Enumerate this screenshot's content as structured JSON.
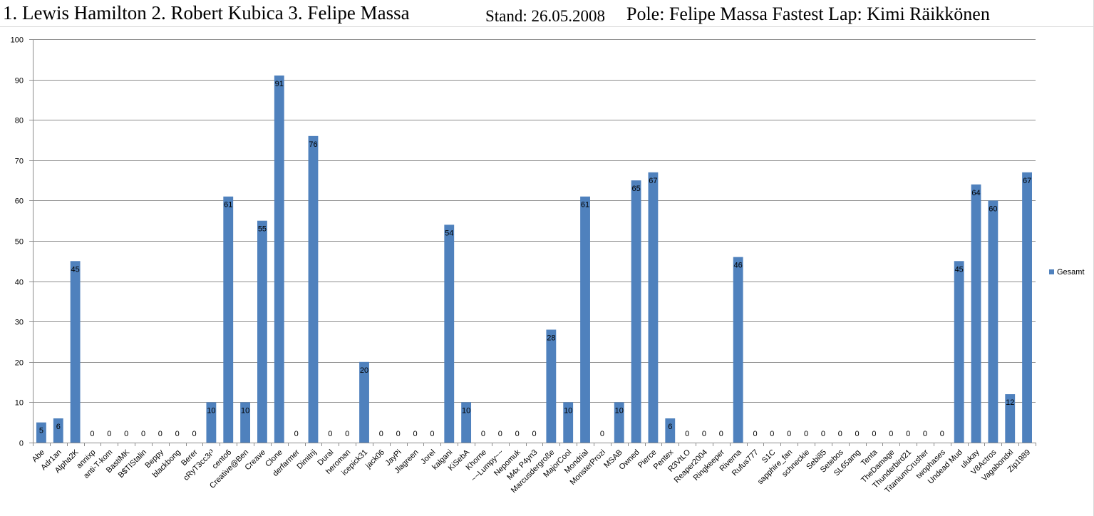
{
  "header": {
    "results": "1. Lewis Hamilton 2. Robert Kubica 3. Felipe Massa",
    "stand": "Stand: 26.05.2008",
    "pole_fastest": "Pole: Felipe Massa Fastest Lap: Kimi Räikkönen"
  },
  "colors": {
    "bar": "#4f81bd",
    "grid": "#8c8c8c",
    "axis": "#8c8c8c",
    "frame": "#d9d9d9"
  },
  "chart_data": {
    "type": "bar",
    "title": "",
    "xlabel": "",
    "ylabel": "",
    "ylim": [
      0,
      100
    ],
    "yticks": [
      0,
      10,
      20,
      30,
      40,
      50,
      60,
      70,
      80,
      90,
      100
    ],
    "grid": true,
    "legend_position": "right",
    "categories": [
      "Abe",
      "Adr1an",
      "Alpha2K",
      "annixp",
      "anti-T-kom",
      "BastiMK",
      "B$TIStalin",
      "Beppy",
      "blackbong",
      "Berer",
      "cRyT3cc3r³",
      "cento6",
      "Creative@Ben",
      "Creave",
      "Clone",
      "derfarmer",
      "Dimitrij",
      "Dural",
      "heroman",
      "icepick31",
      "jack06",
      "JayPi",
      "Jlagreen",
      "Jorel",
      "kalgani",
      "KiSebA",
      "Khorne",
      "~~Lumpy~~",
      "Nepomuk",
      "M4x P4yn3",
      "Marcusdergroße",
      "MajorCool",
      "Mondrial",
      "MonsterProzi",
      "MSAB",
      "Owned",
      "Pierce",
      "Pentex",
      "R3VtLO",
      "Reaper2004",
      "Ringkeeper",
      "Riverna",
      "Rufus777",
      "S1C",
      "sapphire_fan",
      "schneckie",
      "Sebi85",
      "Setebos",
      "SL65amg",
      "Tenta",
      "TheDamage",
      "Thunderbird21",
      "TitaniumCrusher",
      "twophases",
      "Undead Mud",
      "ulukay",
      "V8Actros",
      "Vagabondxl",
      "Zip1989"
    ],
    "series": [
      {
        "name": "Gesamt",
        "values": [
          5,
          6,
          45,
          0,
          0,
          0,
          0,
          0,
          0,
          0,
          10,
          61,
          10,
          55,
          91,
          0,
          76,
          0,
          0,
          20,
          0,
          0,
          0,
          0,
          54,
          10,
          0,
          0,
          0,
          0,
          28,
          10,
          61,
          0,
          10,
          65,
          67,
          6,
          0,
          0,
          0,
          46,
          0,
          0,
          0,
          0,
          0,
          0,
          0,
          0,
          0,
          0,
          0,
          0,
          45,
          64,
          60,
          12,
          67
        ]
      }
    ]
  }
}
